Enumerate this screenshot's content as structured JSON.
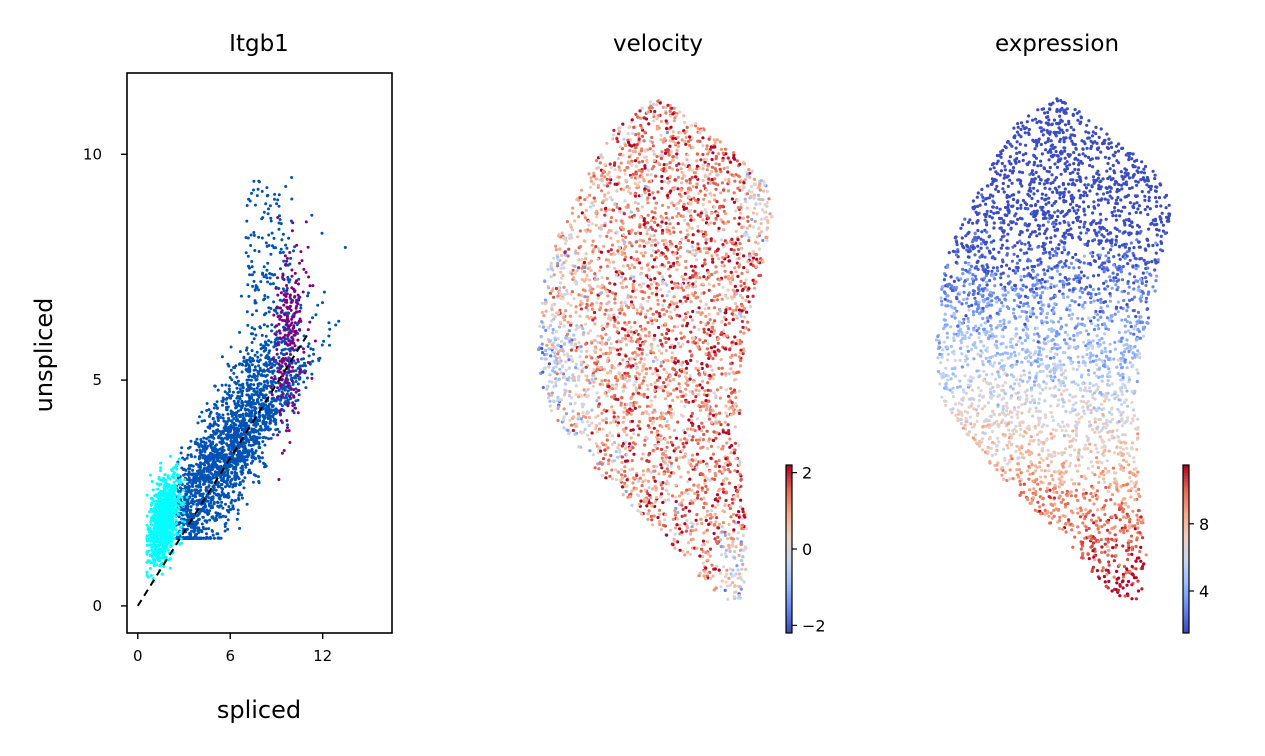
{
  "chart_data": [
    {
      "type": "scatter",
      "title": "Itgb1",
      "xlabel": "spliced",
      "ylabel": "unspliced",
      "xlim": [
        -0.7,
        16.5
      ],
      "ylim": [
        -0.6,
        11.8
      ],
      "xticks": [
        0,
        6,
        12
      ],
      "yticks": [
        0,
        5,
        10
      ],
      "grid": false,
      "legend": "none",
      "series": [
        {
          "color": "#00ffff",
          "x_center": 1.7,
          "y_center": 1.9,
          "n_points": 900
        },
        {
          "color": "#0052b4",
          "x_center": 6.0,
          "y_center": 3.5,
          "n_points": 2400
        },
        {
          "color": "#800080",
          "x_center": 9.8,
          "y_center": 6.0,
          "n_points": 250
        }
      ],
      "fit_line": {
        "x": [
          0,
          11
        ],
        "y": [
          0,
          6.0
        ],
        "style": "dashed",
        "color": "#000000"
      }
    },
    {
      "type": "scatter",
      "title": "velocity",
      "colormap": "coolwarm",
      "colorbar": {
        "ticks": [
          "2",
          "0",
          "−2"
        ],
        "min": -2.2,
        "max": 2.2
      },
      "grid": false,
      "axes_visible": false
    },
    {
      "type": "scatter",
      "title": "expression",
      "colormap": "coolwarm",
      "colorbar": {
        "ticks": [
          "8",
          "4"
        ],
        "min": 1.5,
        "max": 11.5
      },
      "grid": false,
      "axes_visible": false
    }
  ],
  "colors": {
    "coolwarm": [
      "#3b4cc0",
      "#6788ee",
      "#9abbff",
      "#c9d7f0",
      "#edd1c2",
      "#f7a889",
      "#e26952",
      "#b40426"
    ]
  }
}
